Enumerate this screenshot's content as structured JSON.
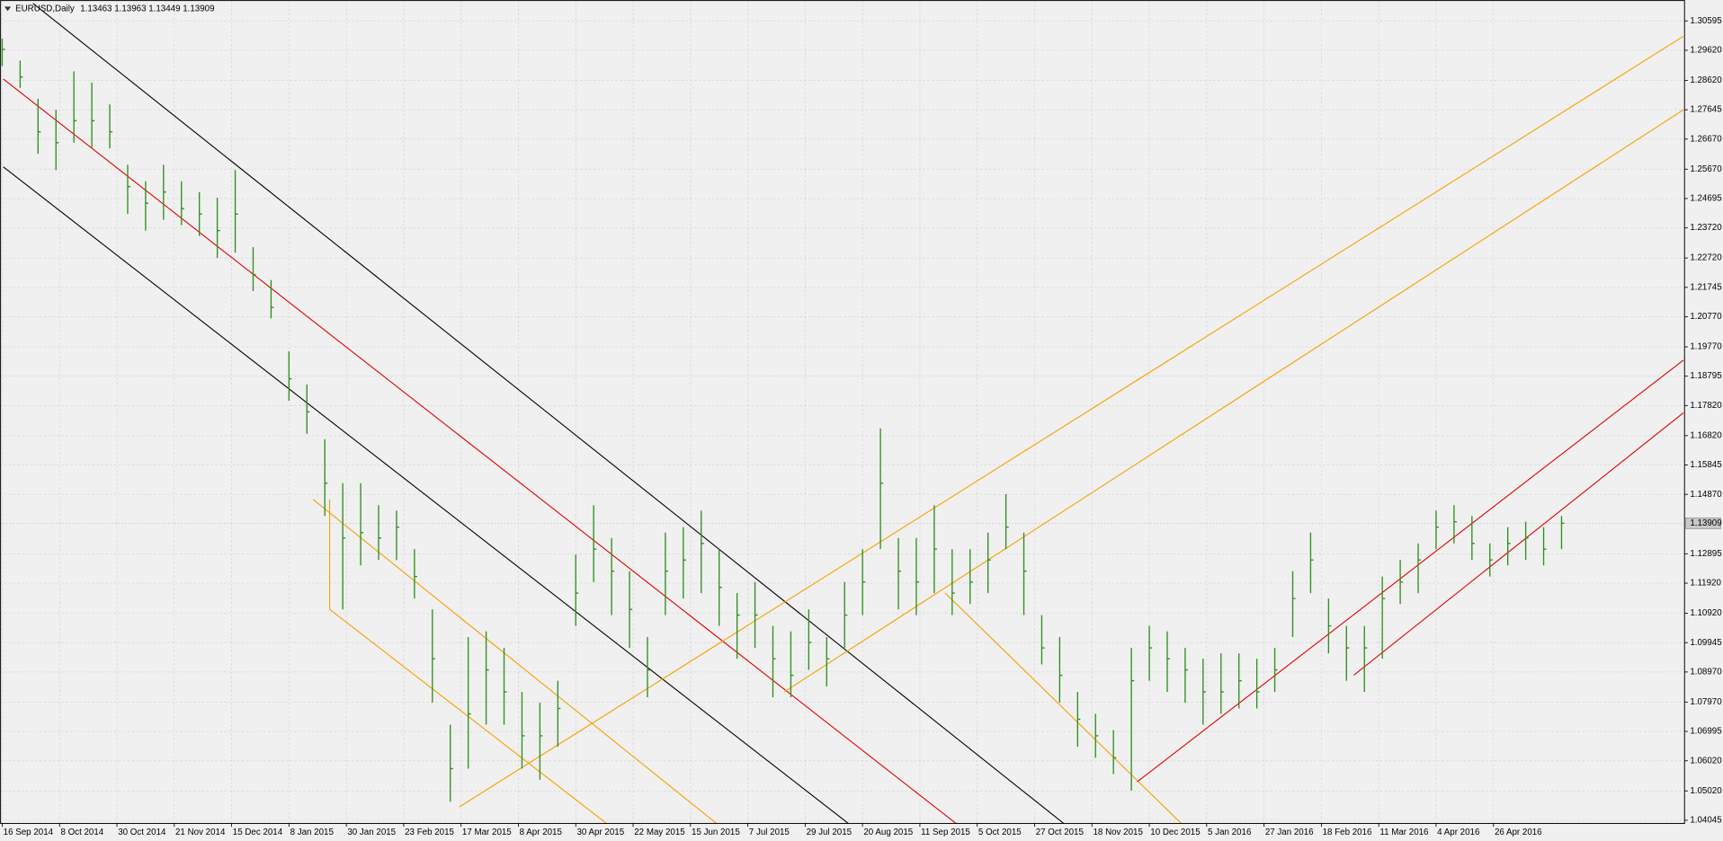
{
  "chart_data": {
    "type": "ohlc",
    "title": "EURUSD,Daily",
    "subtitle": "1.13463 1.13963 1.13449 1.13909",
    "color": "#2f8f1f",
    "grid": true,
    "last_price": 1.13909,
    "xlim": [
      0,
      469
    ],
    "ylim": [
      1.0394,
      1.3118
    ],
    "xticks": [
      {
        "value": 0,
        "label": "16 Sep 2014"
      },
      {
        "value": 16,
        "label": "8 Oct 2014"
      },
      {
        "value": 32,
        "label": "30 Oct 2014"
      },
      {
        "value": 48,
        "label": "21 Nov 2014"
      },
      {
        "value": 64,
        "label": "15 Dec 2014"
      },
      {
        "value": 80,
        "label": "8 Jan 2015"
      },
      {
        "value": 96,
        "label": "30 Jan 2015"
      },
      {
        "value": 112,
        "label": "23 Feb 2015"
      },
      {
        "value": 128,
        "label": "17 Mar 2015"
      },
      {
        "value": 144,
        "label": "8 Apr 2015"
      },
      {
        "value": 160,
        "label": "30 Apr 2015"
      },
      {
        "value": 176,
        "label": "22 May 2015"
      },
      {
        "value": 192,
        "label": "15 Jun 2015"
      },
      {
        "value": 208,
        "label": "7 Jul 2015"
      },
      {
        "value": 224,
        "label": "29 Jul 2015"
      },
      {
        "value": 240,
        "label": "20 Aug 2015"
      },
      {
        "value": 256,
        "label": "11 Sep 2015"
      },
      {
        "value": 272,
        "label": "5 Oct 2015"
      },
      {
        "value": 288,
        "label": "27 Oct 2015"
      },
      {
        "value": 304,
        "label": "18 Nov 2015"
      },
      {
        "value": 320,
        "label": "10 Dec 2015"
      },
      {
        "value": 336,
        "label": "5 Jan 2016"
      },
      {
        "value": 352,
        "label": "27 Jan 2016"
      },
      {
        "value": 368,
        "label": "18 Feb 2016"
      },
      {
        "value": 384,
        "label": "11 Mar 2016"
      },
      {
        "value": 400,
        "label": "4 Apr 2016"
      },
      {
        "value": 416,
        "label": "26 Apr 2016"
      }
    ],
    "yticks": [
      {
        "value": 1.30595,
        "label": "1.30595"
      },
      {
        "value": 1.2962,
        "label": "1.29620"
      },
      {
        "value": 1.2862,
        "label": "1.28620"
      },
      {
        "value": 1.27645,
        "label": "1.27645"
      },
      {
        "value": 1.2667,
        "label": "1.26670"
      },
      {
        "value": 1.2567,
        "label": "1.25670"
      },
      {
        "value": 1.24695,
        "label": "1.24695"
      },
      {
        "value": 1.2372,
        "label": "1.23720"
      },
      {
        "value": 1.2272,
        "label": "1.22720"
      },
      {
        "value": 1.21745,
        "label": "1.21745"
      },
      {
        "value": 1.2077,
        "label": "1.20770"
      },
      {
        "value": 1.1977,
        "label": "1.19770"
      },
      {
        "value": 1.18795,
        "label": "1.18795"
      },
      {
        "value": 1.1782,
        "label": "1.17820"
      },
      {
        "value": 1.1682,
        "label": "1.16820"
      },
      {
        "value": 1.15845,
        "label": "1.15845"
      },
      {
        "value": 1.1487,
        "label": "1.14870"
      },
      {
        "value": 1.12895,
        "label": "1.12895"
      },
      {
        "value": 1.1192,
        "label": "1.11920"
      },
      {
        "value": 1.1092,
        "label": "1.10920"
      },
      {
        "value": 1.09945,
        "label": "1.09945"
      },
      {
        "value": 1.0897,
        "label": "1.08970"
      },
      {
        "value": 1.0797,
        "label": "1.07970"
      },
      {
        "value": 1.06995,
        "label": "1.06995"
      },
      {
        "value": 1.0602,
        "label": "1.06020"
      },
      {
        "value": 1.0502,
        "label": "1.05020"
      },
      {
        "value": 1.04045,
        "label": "1.04045"
      }
    ],
    "x": [
      0,
      5,
      10,
      15,
      20,
      25,
      30,
      35,
      40,
      45,
      50,
      55,
      60,
      65,
      70,
      75,
      80,
      85,
      90,
      95,
      100,
      105,
      110,
      115,
      120,
      125,
      130,
      135,
      140,
      145,
      150,
      155,
      160,
      165,
      170,
      175,
      180,
      185,
      190,
      195,
      200,
      205,
      210,
      215,
      220,
      225,
      230,
      235,
      240,
      245,
      250,
      255,
      260,
      265,
      270,
      275,
      280,
      285,
      290,
      295,
      300,
      305,
      310,
      315,
      320,
      325,
      330,
      335,
      340,
      345,
      350,
      355,
      360,
      365,
      370,
      375,
      380,
      385,
      390,
      395,
      400,
      405,
      410,
      415,
      420,
      425,
      430,
      435
    ],
    "high": [
      1.3001,
      1.2928,
      1.2801,
      1.2764,
      1.2892,
      1.2855,
      1.2782,
      1.2582,
      1.2527,
      1.2582,
      1.2527,
      1.2491,
      1.2472,
      1.2564,
      1.2308,
      1.2199,
      1.1962,
      1.1852,
      1.167,
      1.1524,
      1.1524,
      1.1451,
      1.1433,
      1.1305,
      1.1105,
      1.0722,
      1.1013,
      1.1032,
      1.0977,
      1.0831,
      1.0795,
      1.0868,
      1.1287,
      1.1451,
      1.1342,
      1.1232,
      1.1013,
      1.136,
      1.1378,
      1.1433,
      1.1305,
      1.1159,
      1.1196,
      1.105,
      1.1032,
      1.1105,
      1.1013,
      1.1196,
      1.1305,
      1.1706,
      1.1342,
      1.1342,
      1.1451,
      1.1305,
      1.1305,
      1.136,
      1.1488,
      1.136,
      1.1086,
      1.1013,
      1.0831,
      1.0758,
      1.0704,
      1.0977,
      1.105,
      1.1032,
      1.0977,
      1.0941,
      1.0959,
      1.0959,
      1.0941,
      1.0977,
      1.1232,
      1.136,
      1.1141,
      1.105,
      1.105,
      1.1214,
      1.1269,
      1.1324,
      1.1433,
      1.1451,
      1.1415,
      1.1324,
      1.1378,
      1.1396,
      1.1378,
      1.1415
    ],
    "low": [
      1.291,
      1.2837,
      1.2618,
      1.2564,
      1.2655,
      1.2636,
      1.2636,
      1.2418,
      1.2363,
      1.2399,
      1.2381,
      1.2345,
      1.2272,
      1.229,
      1.2162,
      1.2071,
      1.1798,
      1.1688,
      1.1415,
      1.1105,
      1.1251,
      1.1269,
      1.1269,
      1.1141,
      1.0795,
      1.0466,
      1.0576,
      1.0722,
      1.0722,
      1.0576,
      1.0539,
      1.0649,
      1.105,
      1.1196,
      1.1086,
      1.0977,
      1.0813,
      1.1086,
      1.1141,
      1.1159,
      1.105,
      1.0941,
      1.0977,
      1.0813,
      1.0813,
      1.0904,
      1.0849,
      1.0977,
      1.1086,
      1.1305,
      1.1105,
      1.1086,
      1.1159,
      1.1086,
      1.1123,
      1.1159,
      1.1305,
      1.1086,
      1.0922,
      1.0795,
      1.0649,
      1.0612,
      1.0558,
      1.0503,
      1.0868,
      1.0831,
      1.0795,
      1.0722,
      1.0758,
      1.0776,
      1.0776,
      1.0831,
      1.1013,
      1.1159,
      1.0959,
      1.0868,
      1.0831,
      1.0941,
      1.1123,
      1.1159,
      1.1305,
      1.1324,
      1.1269,
      1.1214,
      1.1251,
      1.1269,
      1.1251,
      1.1305
    ],
    "close": [
      1.2965,
      1.2873,
      1.2691,
      1.2655,
      1.2728,
      1.2728,
      1.2691,
      1.2509,
      1.2454,
      1.2491,
      1.2436,
      1.2418,
      1.2363,
      1.2418,
      1.2217,
      1.2108,
      1.1871,
      1.1761,
      1.1524,
      1.1342,
      1.136,
      1.1342,
      1.1378,
      1.1214,
      1.0941,
      1.0576,
      1.0758,
      1.0904,
      1.0831,
      1.0685,
      1.0685,
      1.0776,
      1.1159,
      1.1305,
      1.1232,
      1.1105,
      1.0904,
      1.1232,
      1.1269,
      1.1324,
      1.1178,
      1.1086,
      1.1086,
      1.0941,
      1.0886,
      1.0995,
      1.0941,
      1.1086,
      1.1196,
      1.1524,
      1.1232,
      1.1196,
      1.1305,
      1.1159,
      1.1196,
      1.1269,
      1.1378,
      1.1232,
      1.0977,
      1.0886,
      1.074,
      1.0685,
      1.0612,
      1.0868,
      1.0977,
      1.0941,
      1.0904,
      1.0831,
      1.0831,
      1.0868,
      1.0831,
      1.0904,
      1.1141,
      1.1269,
      1.105,
      1.0977,
      1.0977,
      1.1141,
      1.1196,
      1.1269,
      1.1378,
      1.1396,
      1.1324,
      1.1269,
      1.1324,
      1.1342,
      1.1305,
      1.13909
    ]
  }
}
